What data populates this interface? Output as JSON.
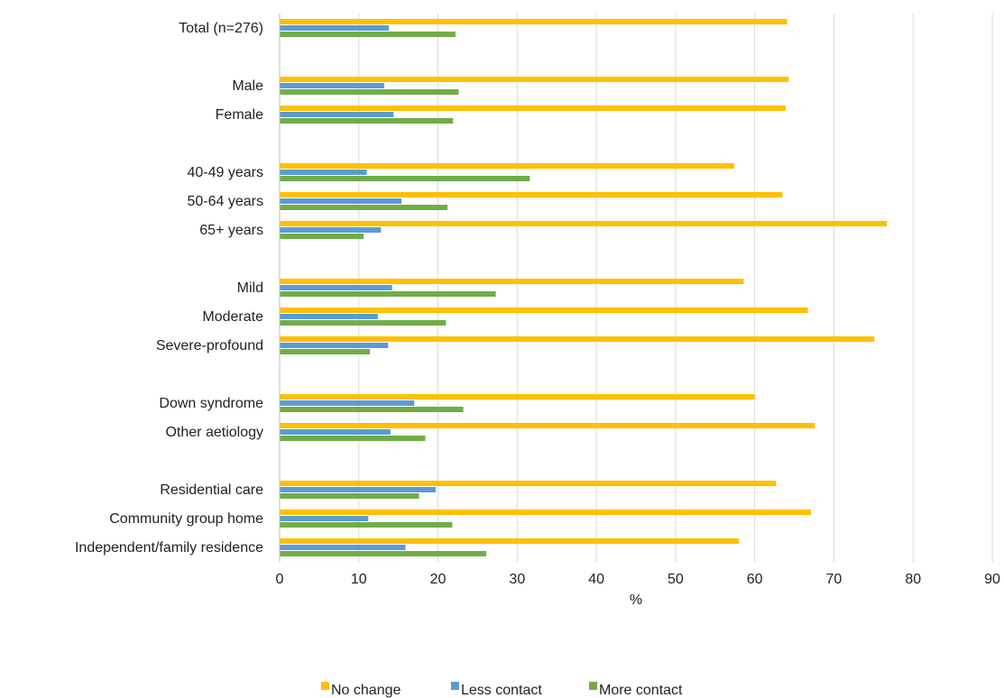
{
  "chart_data": {
    "type": "bar",
    "orientation": "horizontal",
    "title": "",
    "xlabel": "%",
    "ylabel": "",
    "xlim": [
      0,
      90
    ],
    "x_ticks": [
      "0",
      "10",
      "20",
      "30",
      "40",
      "50",
      "60",
      "70",
      "80",
      "90"
    ],
    "grid": "vertical",
    "legend_position": "bottom",
    "categories": [
      "Total (n=276)",
      "",
      "Male",
      "Female",
      "",
      "40-49 years",
      "50-64 years",
      "65+ years",
      "",
      "Mild",
      "Moderate",
      "Severe-profound",
      "",
      "Down syndrome",
      "Other aetiology",
      "",
      "Residential care",
      "Community group home",
      "Independent/family residence"
    ],
    "series": [
      {
        "name": "No change",
        "color": "#FFC000",
        "values": [
          64.1,
          null,
          64.3,
          63.9,
          null,
          57.4,
          63.5,
          76.7,
          null,
          58.6,
          66.7,
          75.1,
          null,
          60.0,
          67.6,
          null,
          62.7,
          67.1,
          58.0
        ]
      },
      {
        "name": "Less contact",
        "color": "#5B9BD5",
        "values": [
          13.8,
          null,
          13.2,
          14.4,
          null,
          11.0,
          15.4,
          12.8,
          null,
          14.2,
          12.4,
          13.7,
          null,
          17.0,
          14.0,
          null,
          19.7,
          11.2,
          15.9
        ]
      },
      {
        "name": "More contact",
        "color": "#70AD47",
        "values": [
          22.2,
          null,
          22.6,
          21.9,
          null,
          31.6,
          21.2,
          10.6,
          null,
          27.3,
          21.0,
          11.4,
          null,
          23.2,
          18.4,
          null,
          17.6,
          21.8,
          26.1
        ]
      }
    ]
  }
}
